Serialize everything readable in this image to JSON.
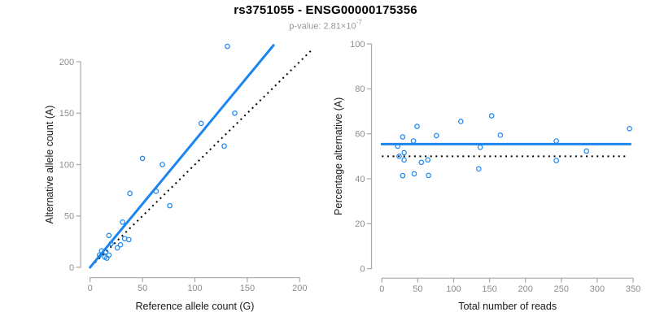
{
  "header": {
    "title": "rs3751055 - ENSG00000175356",
    "subtitle_text": "p-value: 2.81×10",
    "subtitle_exponent": "-7"
  },
  "colors": {
    "accent_blue": "#1c86ee",
    "identity_black": "#000000",
    "axis_line_gray": "#a8a8a8",
    "tick_text_gray": "#8c8c8c",
    "axis_title_black": "#1a1a1a",
    "subtitle_gray": "#979797",
    "background": "#ffffff"
  },
  "chart_data": [
    {
      "type": "scatter",
      "name": "allele-count-scatter",
      "xlabel": "Reference allele count (G)",
      "ylabel": "Alternative allele count (A)",
      "xticks": [
        0,
        50,
        100,
        150,
        200
      ],
      "yticks": [
        0,
        50,
        100,
        150,
        200
      ],
      "xlim": [
        -9,
        217
      ],
      "ylim": [
        -10,
        217
      ],
      "grid": false,
      "points": [
        [
          131,
          215
        ],
        [
          138,
          150
        ],
        [
          106,
          140
        ],
        [
          128,
          118
        ],
        [
          50,
          106
        ],
        [
          69,
          100
        ],
        [
          63,
          74
        ],
        [
          38,
          72
        ],
        [
          76,
          60
        ],
        [
          31,
          44
        ],
        [
          18,
          31
        ],
        [
          33,
          28
        ],
        [
          37,
          27
        ],
        [
          29,
          22
        ],
        [
          26,
          19
        ],
        [
          20,
          23
        ],
        [
          11,
          16
        ],
        [
          15,
          15
        ],
        [
          9,
          12
        ],
        [
          14,
          10
        ],
        [
          18,
          12
        ],
        [
          16,
          9
        ]
      ],
      "lines": [
        {
          "name": "identity-line",
          "style": "dotted",
          "color": "#000000",
          "width": 2,
          "x1": 1,
          "y1": 1,
          "x2": 213,
          "y2": 213
        },
        {
          "name": "fitted-line",
          "style": "solid",
          "color": "#1c86ee",
          "width": 3,
          "x1": 0,
          "y1": 0,
          "x2": 175,
          "y2": 216
        }
      ]
    },
    {
      "type": "scatter",
      "name": "percentage-vs-reads-scatter",
      "xlabel": "Total number of reads",
      "ylabel": "Percentage alternative (A)",
      "xticks": [
        0,
        50,
        100,
        150,
        200,
        250,
        300,
        350
      ],
      "yticks": [
        0,
        20,
        40,
        60,
        80,
        100
      ],
      "xlim": [
        -14.5,
        364.5
      ],
      "ylim": [
        -4.2,
        104.2
      ],
      "grid": false,
      "points": [
        [
          22,
          54.5
        ],
        [
          29,
          58.6
        ],
        [
          24,
          50.0
        ],
        [
          31,
          51.6
        ],
        [
          31,
          48.4
        ],
        [
          29,
          41.4
        ],
        [
          45,
          42.2
        ],
        [
          49,
          63.3
        ],
        [
          44,
          56.8
        ],
        [
          55,
          47.3
        ],
        [
          64,
          48.4
        ],
        [
          65,
          41.5
        ],
        [
          76,
          59.2
        ],
        [
          110,
          65.5
        ],
        [
          137,
          54.0
        ],
        [
          135,
          44.4
        ],
        [
          153,
          68.0
        ],
        [
          165,
          59.4
        ],
        [
          243,
          56.8
        ],
        [
          243,
          48.1
        ],
        [
          285,
          52.3
        ],
        [
          345,
          62.3
        ]
      ],
      "lines": [
        {
          "name": "expected-percentage-line",
          "style": "dotted",
          "color": "#000000",
          "width": 2,
          "x1": 0,
          "y1": 50,
          "x2": 339,
          "y2": 50
        },
        {
          "name": "mean-percentage-line",
          "style": "solid",
          "color": "#1c86ee",
          "width": 3,
          "x1": 0,
          "y1": 55.4,
          "x2": 346,
          "y2": 55.4
        }
      ]
    }
  ]
}
